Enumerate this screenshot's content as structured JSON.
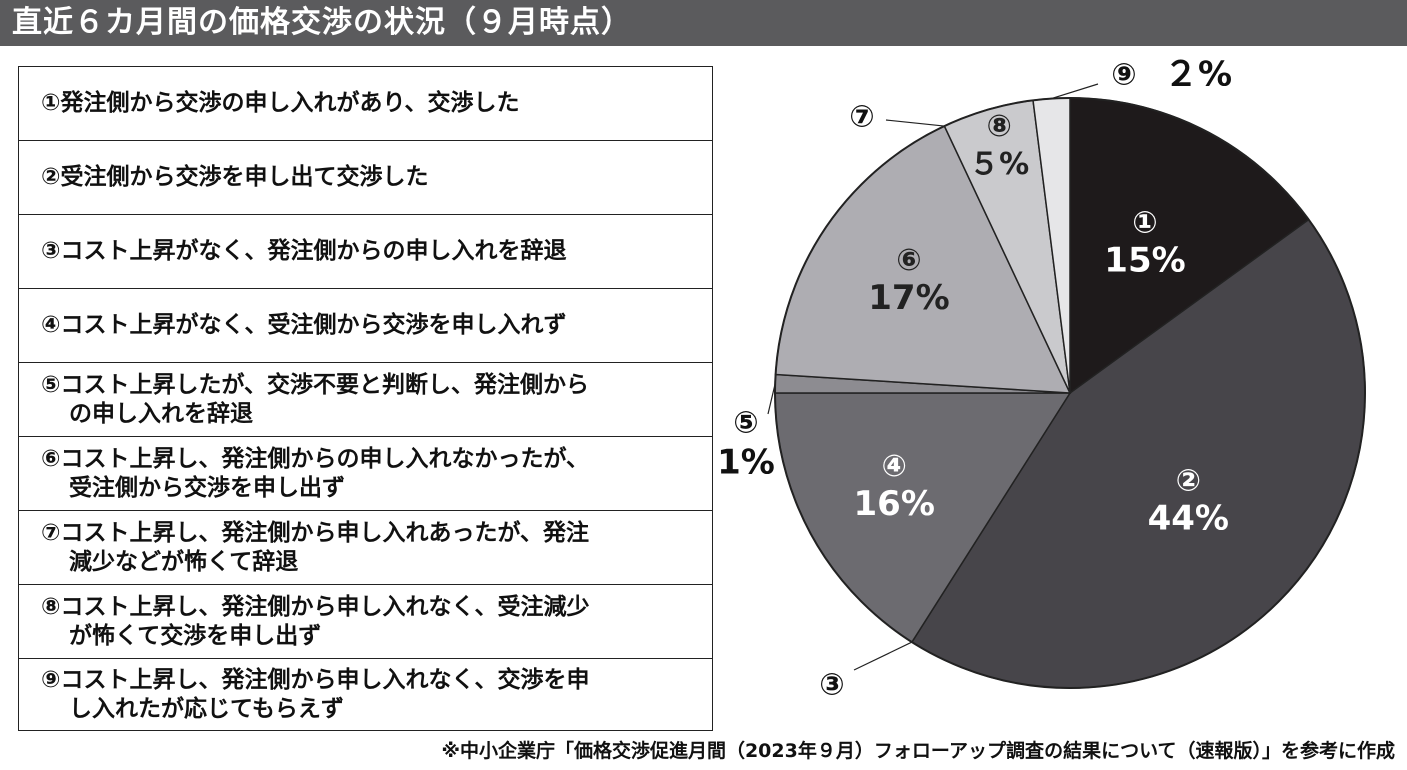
{
  "title": "直近６カ月間の価格交渉の状況（９月時点）",
  "legend_items": [
    "①発注側から交渉の申し入れがあり、交渉した",
    "②受注側から交渉を申し出て交渉した",
    "③コスト上昇がなく、発注側からの申し入れを辞退",
    "④コスト上昇がなく、受注側から交渉を申し入れず",
    "⑤コスト上昇したが、交渉不要と判断し、発注側から\nの申し入れを辞退",
    "⑥コスト上昇し、発注側からの申し入れなかったが、\n受注側から交渉を申し出ず",
    "⑦コスト上昇し、発注側から申し入れあったが、発注\n減少などが怖くて辞退",
    "⑧コスト上昇し、発注側から申し入れなく、受注減少\nが怖くて交渉を申し出ず",
    "⑨コスト上昇し、発注側から申し入れなく、交渉を申\nし入れたが応じてもらえず"
  ],
  "footnote": "※中小企業庁「価格交渉促進月間（2023年９月）フォローアップ調査の結果について（速報版）」を参考に作成",
  "chart_data": {
    "type": "pie",
    "start": "12 o'clock",
    "direction": "clockwise",
    "slices": [
      {
        "marker": "①",
        "value": 15,
        "label": "15%",
        "color": "#1e1a1b",
        "text_color": "#ffffff"
      },
      {
        "marker": "②",
        "value": 44,
        "label": "44%",
        "color": "#47454a",
        "text_color": "#ffffff"
      },
      {
        "marker": "③",
        "value": 0,
        "label": "",
        "color": "#47454a",
        "text_color": "#111111"
      },
      {
        "marker": "④",
        "value": 16,
        "label": "16%",
        "color": "#6c6b70",
        "text_color": "#ffffff"
      },
      {
        "marker": "⑤",
        "value": 1,
        "label": "1%",
        "color": "#8d8c91",
        "text_color": "#111111"
      },
      {
        "marker": "⑥",
        "value": 17,
        "label": "17%",
        "color": "#aeadb2",
        "text_color": "#222222"
      },
      {
        "marker": "⑦",
        "value": 0,
        "label": "",
        "color": "#aeadb2",
        "text_color": "#111111"
      },
      {
        "marker": "⑧",
        "value": 5,
        "label": "５%",
        "color": "#cacacd",
        "text_color": "#222222"
      },
      {
        "marker": "⑨",
        "value": 2,
        "label": "２%",
        "color": "#e6e6e8",
        "text_color": "#111111"
      }
    ]
  }
}
